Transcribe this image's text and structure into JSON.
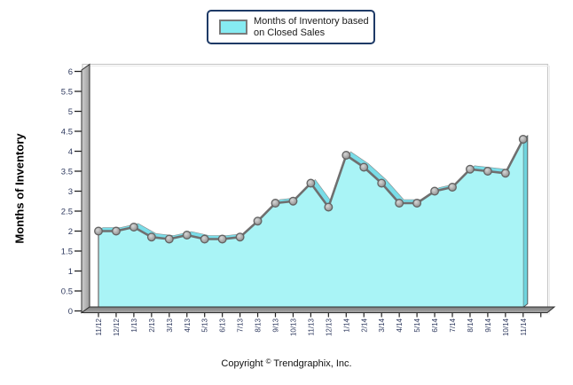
{
  "legend": {
    "label_line1": "Months of Inventory based",
    "label_line2": "on Closed Sales",
    "swatch_color": "#86ebf2"
  },
  "footer": {
    "copyright_word": "Copyright",
    "copyright_symbol": "©",
    "copyright_company": "Trendgraphix, Inc."
  },
  "colors": {
    "area_fill": "#a9f4f6",
    "ribbon_fill": "#79dde8",
    "cap_fill": "#6fd4de",
    "line": "#6f6f6f",
    "marker_edge": "#636363",
    "wall_face": "#b8b8b8",
    "floor_face": "#8f8f8f",
    "tick_label": "#2f3a5f",
    "legend_border": "#1e3a66",
    "frame": "#c8c8c8"
  },
  "chart_data": {
    "type": "area",
    "title": "",
    "xlabel": "",
    "ylabel": "Months of Inventory",
    "ylim": [
      0,
      6
    ],
    "y_tick_step": 0.5,
    "grid": false,
    "legend_position": "top",
    "x": [
      "11/12",
      "12/12",
      "1/13",
      "2/13",
      "3/13",
      "4/13",
      "5/13",
      "6/13",
      "7/13",
      "8/13",
      "9/13",
      "10/13",
      "11/13",
      "12/13",
      "1/14",
      "2/14",
      "3/14",
      "4/14",
      "5/14",
      "6/14",
      "7/14",
      "8/14",
      "9/14",
      "10/14",
      "11/14"
    ],
    "series": [
      {
        "name": "Months of Inventory based on Closed Sales",
        "values": [
          2.0,
          2.0,
          2.1,
          1.85,
          1.8,
          1.9,
          1.8,
          1.8,
          1.85,
          2.25,
          2.7,
          2.75,
          3.2,
          2.6,
          3.9,
          3.6,
          3.2,
          2.7,
          2.7,
          3.0,
          3.1,
          3.55,
          3.5,
          3.45,
          4.3
        ]
      }
    ]
  }
}
